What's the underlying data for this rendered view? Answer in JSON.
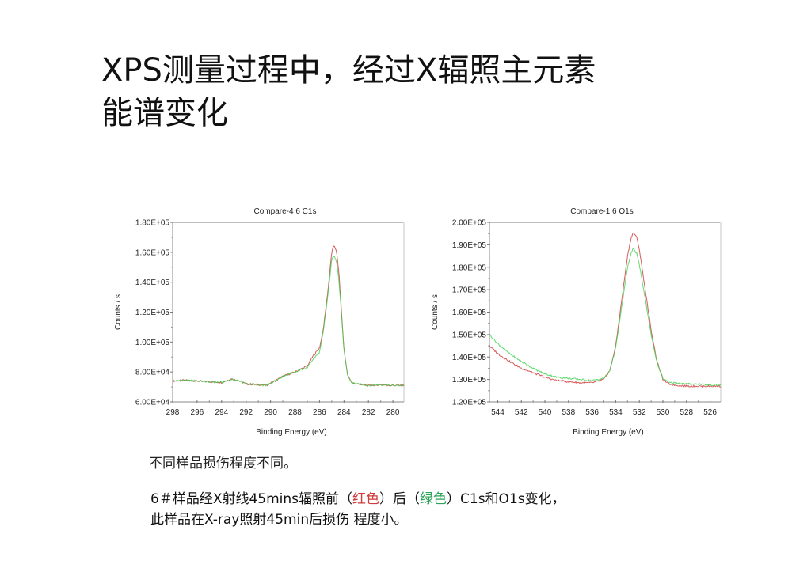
{
  "slide": {
    "title_line1": "XPS测量过程中，经过X辐照主元素",
    "title_line2": "能谱变化",
    "note1": "不同样品损伤程度不同。",
    "note2": {
      "part1": "6＃样品经X射线45mins辐照前（",
      "red_word": "红色",
      "part2": "）后（",
      "green_word": "绿色",
      "part3": "）C1s和O1s变化，",
      "line2": "此样品在X-ray照射45min后损伤 程度小。"
    }
  },
  "colors": {
    "before": "#d04040",
    "after": "#3ccf4e",
    "axis": "#555555"
  },
  "chart_data": [
    {
      "type": "line",
      "title": "Compare-4 6 C1s",
      "xlabel": "Binding Energy (eV)",
      "ylabel": "Counts / s",
      "xlim": [
        298.0,
        279.1
      ],
      "ylim": [
        60000,
        180000
      ],
      "x_ticks": [
        298,
        296,
        294,
        292,
        290,
        288,
        286,
        284,
        282,
        280
      ],
      "y_ticks": [
        "6.00E+04",
        "8.00E+04",
        "1.00E+05",
        "1.20E+05",
        "1.40E+05",
        "1.60E+05",
        "1.80E+05"
      ],
      "series": [
        {
          "name": "before (red)",
          "x": [
            298,
            297,
            296,
            295,
            294,
            293.2,
            292.5,
            292,
            291,
            290.3,
            290,
            289,
            288,
            287,
            286.5,
            286,
            285.7,
            285.3,
            285,
            284.8,
            284.6,
            284.4,
            284.2,
            284,
            283.7,
            283.4,
            283,
            282,
            281,
            280,
            279.1
          ],
          "y": [
            74000,
            74500,
            74000,
            73500,
            73000,
            75500,
            74000,
            72000,
            71500,
            71000,
            72500,
            77000,
            80000,
            84000,
            91000,
            96000,
            108000,
            135000,
            160000,
            165000,
            160000,
            145000,
            120000,
            95000,
            78000,
            73000,
            72000,
            71000,
            71500,
            71000,
            71000
          ]
        },
        {
          "name": "after (green)",
          "x": [
            298,
            297,
            296,
            295,
            294,
            293.2,
            292.5,
            292,
            291,
            290.3,
            290,
            289,
            288,
            287,
            286.5,
            286,
            285.7,
            285.3,
            285,
            284.8,
            284.6,
            284.4,
            284.2,
            284,
            283.7,
            283.4,
            283,
            282,
            281,
            280,
            279.1
          ],
          "y": [
            74000,
            74500,
            74000,
            73500,
            73000,
            75000,
            74000,
            72000,
            71500,
            71000,
            72500,
            77000,
            80000,
            83000,
            89000,
            93000,
            106000,
            132000,
            155000,
            158000,
            154000,
            140000,
            118000,
            94000,
            78000,
            73000,
            72000,
            71000,
            71500,
            71000,
            71000
          ]
        }
      ]
    },
    {
      "type": "line",
      "title": "Compare-1 6 O1s",
      "xlabel": "Binding Energy (eV)",
      "ylabel": "Counts / s",
      "xlim": [
        544.7,
        525.1
      ],
      "ylim": [
        120000,
        200000
      ],
      "x_ticks": [
        544,
        542,
        540,
        538,
        536,
        534,
        532,
        530,
        528,
        526
      ],
      "y_ticks": [
        "1.20E+05",
        "1.30E+05",
        "1.40E+05",
        "1.50E+05",
        "1.60E+05",
        "1.70E+05",
        "1.80E+05",
        "1.90E+05",
        "2.00E+05"
      ],
      "series": [
        {
          "name": "before (red)",
          "x": [
            544.7,
            544,
            543,
            542,
            541,
            540,
            539,
            538,
            537,
            536,
            535,
            534.5,
            534,
            533.5,
            533,
            532.7,
            532.5,
            532.2,
            532,
            531.5,
            531,
            530.5,
            530,
            529.5,
            529,
            528,
            527,
            526,
            525.1
          ],
          "y": [
            145000,
            141500,
            138000,
            135000,
            133000,
            131000,
            129500,
            129000,
            128500,
            128500,
            130000,
            134000,
            145000,
            165000,
            185000,
            193000,
            195500,
            193000,
            188000,
            170000,
            152000,
            138000,
            130000,
            128000,
            127500,
            127000,
            127000,
            127000,
            127000
          ]
        },
        {
          "name": "after (green)",
          "x": [
            544.7,
            544,
            543,
            542,
            541,
            540,
            539,
            538,
            537,
            536,
            535,
            534.5,
            534,
            533.5,
            533,
            532.7,
            532.5,
            532.2,
            532,
            531.5,
            531,
            530.5,
            530,
            529.5,
            529,
            528,
            527,
            526,
            525.1
          ],
          "y": [
            150000,
            146000,
            141500,
            138000,
            135000,
            132500,
            131000,
            130500,
            130000,
            129500,
            130500,
            134000,
            144000,
            162000,
            180000,
            186000,
            188500,
            186000,
            181000,
            166000,
            150000,
            137500,
            130500,
            128500,
            128500,
            128000,
            128000,
            127500,
            127500
          ]
        }
      ]
    }
  ]
}
